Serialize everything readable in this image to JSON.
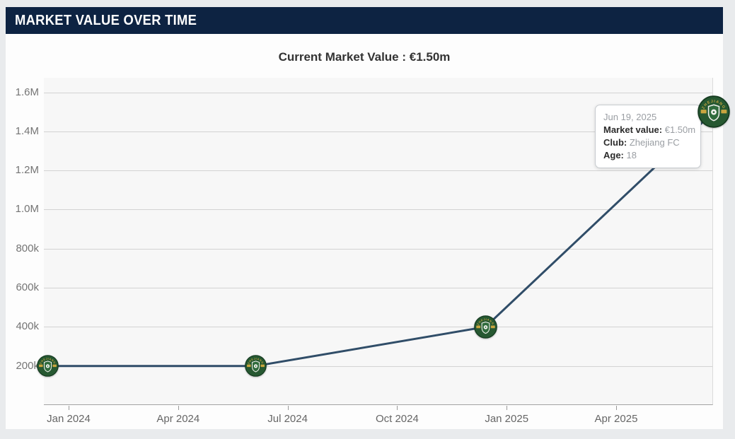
{
  "header": {
    "title": "MARKET VALUE OVER TIME"
  },
  "chart_data": {
    "type": "line",
    "title": "Current Market Value : €1.50m",
    "xlabel": "",
    "ylabel": "",
    "ylim": [
      0,
      1674000
    ],
    "grid": true,
    "legend": false,
    "line_color": "#304d68",
    "x_ticks": [
      {
        "label": "Jan 2024",
        "month_offset": 0
      },
      {
        "label": "Apr 2024",
        "month_offset": 3
      },
      {
        "label": "Jul 2024",
        "month_offset": 6
      },
      {
        "label": "Oct 2024",
        "month_offset": 9
      },
      {
        "label": "Jan 2025",
        "month_offset": 12
      },
      {
        "label": "Apr 2025",
        "month_offset": 15
      }
    ],
    "y_ticks": [
      {
        "label": "1.6M",
        "value": 1600000
      },
      {
        "label": "1.4M",
        "value": 1400000
      },
      {
        "label": "1.2M",
        "value": 1200000
      },
      {
        "label": "1.0M",
        "value": 1000000
      },
      {
        "label": "800k",
        "value": 800000
      },
      {
        "label": "600k",
        "value": 600000
      },
      {
        "label": "400k",
        "value": 400000
      },
      {
        "label": "200k",
        "value": 200000
      }
    ],
    "points": [
      {
        "date": "Dec 2023",
        "month_offset": -0.58,
        "value": 200000,
        "value_label": "€200k",
        "club": "Zhejiang FC",
        "badge_size": 31
      },
      {
        "date": "Jun 2024",
        "month_offset": 5.13,
        "value": 200000,
        "value_label": "€200k",
        "club": "Zhejiang FC",
        "badge_size": 31
      },
      {
        "date": "Dec 2024",
        "month_offset": 11.42,
        "value": 400000,
        "value_label": "€400k",
        "club": "Zhejiang FC",
        "badge_size": 33
      },
      {
        "date": "Jun 19, 2025",
        "month_offset": 17.67,
        "value": 1500000,
        "value_label": "€1.50m",
        "club": "Zhejiang FC",
        "badge_size": 46
      }
    ]
  },
  "tooltip": {
    "date": "Jun 19, 2025",
    "market_value_label": "Market value:",
    "market_value": "€1.50m",
    "club_label": "Club:",
    "club": "Zhejiang FC",
    "age_label": "Age:",
    "age": "18"
  },
  "badge": {
    "club": "Zhejiang FC",
    "arc_text": "ZHEJIANG",
    "green": "#265831",
    "green_dark": "#143a1f",
    "gold": "#c9a53f",
    "shield_green": "#2f6b3c"
  }
}
